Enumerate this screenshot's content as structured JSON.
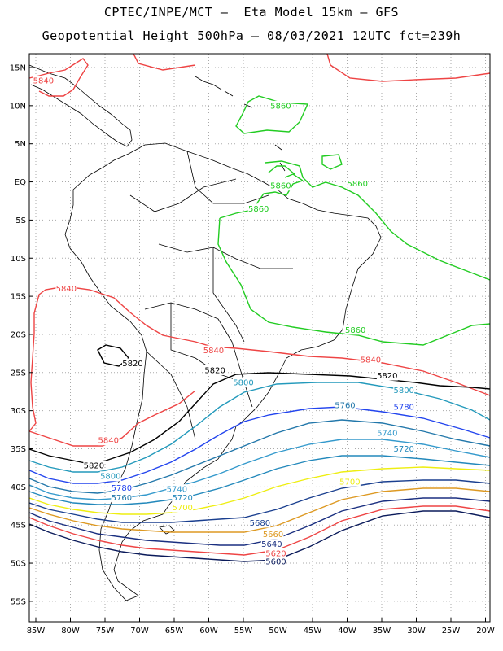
{
  "title_line1": "CPTEC/INPE/MCT —  Eta Model 15km — GFS",
  "title_line2": "Geopotential Height 500hPa — 08/03/2021 12UTC fct=239h",
  "lat_labels": [
    "15N",
    "10N",
    "5N",
    "EQ",
    "5S",
    "10S",
    "15S",
    "20S",
    "25S",
    "30S",
    "35S",
    "40S",
    "45S",
    "50S",
    "55S"
  ],
  "lon_labels": [
    "85W",
    "80W",
    "75W",
    "70W",
    "65W",
    "60W",
    "55W",
    "50W",
    "45W",
    "40W",
    "35W",
    "30W",
    "25W",
    "20W"
  ],
  "contour_colors": {
    "5860": "#22cc22",
    "5840": "#ee4444",
    "5820": "#000000",
    "5800": "#2299bb",
    "5780": "#2244ee",
    "5760": "#2277aa",
    "5740": "#3399cc",
    "5720": "#2288bb",
    "5700": "#eeee11",
    "5680": "#1a3f8f",
    "5660": "#dd9922",
    "5640": "#1a2f80",
    "5620": "#ee4444",
    "5600": "#0a1a5a"
  },
  "contour_labels": [
    {
      "text": "5860",
      "level": "5860",
      "lon": -49.6,
      "lat": 10.0
    },
    {
      "text": "5860",
      "level": "5860",
      "lon": -49.6,
      "lat": -0.5
    },
    {
      "text": "5860",
      "level": "5860",
      "lon": -38.5,
      "lat": -0.2
    },
    {
      "text": "5860",
      "level": "5860",
      "lon": -52.8,
      "lat": -3.5
    },
    {
      "text": "5860",
      "level": "5860",
      "lon": -38.8,
      "lat": -19.4
    },
    {
      "text": "5840",
      "level": "5840",
      "lon": -83.9,
      "lat": 13.3
    },
    {
      "text": "5840",
      "level": "5840",
      "lon": -80.6,
      "lat": -14.0
    },
    {
      "text": "5840",
      "level": "5840",
      "lon": -59.3,
      "lat": -22.1
    },
    {
      "text": "5840",
      "level": "5840",
      "lon": -36.6,
      "lat": -23.3
    },
    {
      "text": "5840",
      "level": "5840",
      "lon": -74.5,
      "lat": -33.9
    },
    {
      "text": "5820",
      "level": "5820",
      "lon": -71.0,
      "lat": -23.8
    },
    {
      "text": "5820",
      "level": "5820",
      "lon": -59.1,
      "lat": -24.7
    },
    {
      "text": "5820",
      "level": "5820",
      "lon": -34.2,
      "lat": -25.4
    },
    {
      "text": "5820",
      "level": "5820",
      "lon": -76.6,
      "lat": -37.2
    },
    {
      "text": "5800",
      "level": "5800",
      "lon": -55.0,
      "lat": -26.3
    },
    {
      "text": "5800",
      "level": "5800",
      "lon": -31.8,
      "lat": -27.3
    },
    {
      "text": "5800",
      "level": "5800",
      "lon": -74.2,
      "lat": -38.6
    },
    {
      "text": "5780",
      "level": "5780",
      "lon": -31.8,
      "lat": -29.5
    },
    {
      "text": "5780",
      "level": "5780",
      "lon": -72.6,
      "lat": -40.1
    },
    {
      "text": "5760",
      "level": "5760",
      "lon": -40.3,
      "lat": -29.3
    },
    {
      "text": "5760",
      "level": "5760",
      "lon": -72.6,
      "lat": -41.4
    },
    {
      "text": "5740",
      "level": "5740",
      "lon": -34.2,
      "lat": -32.9
    },
    {
      "text": "5740",
      "level": "5740",
      "lon": -64.6,
      "lat": -40.3
    },
    {
      "text": "5720",
      "level": "5720",
      "lon": -31.8,
      "lat": -35.0
    },
    {
      "text": "5720",
      "level": "5720",
      "lon": -63.8,
      "lat": -41.4
    },
    {
      "text": "5700",
      "level": "5700",
      "lon": -39.6,
      "lat": -39.3
    },
    {
      "text": "5700",
      "level": "5700",
      "lon": -63.8,
      "lat": -42.7
    },
    {
      "text": "5680",
      "level": "5680",
      "lon": -52.6,
      "lat": -44.7
    },
    {
      "text": "5660",
      "level": "5660",
      "lon": -50.7,
      "lat": -46.2
    },
    {
      "text": "5640",
      "level": "5640",
      "lon": -50.9,
      "lat": -47.5
    },
    {
      "text": "5620",
      "level": "5620",
      "lon": -50.3,
      "lat": -48.7
    },
    {
      "text": "5600",
      "level": "5600",
      "lon": -50.3,
      "lat": -49.8
    }
  ]
}
